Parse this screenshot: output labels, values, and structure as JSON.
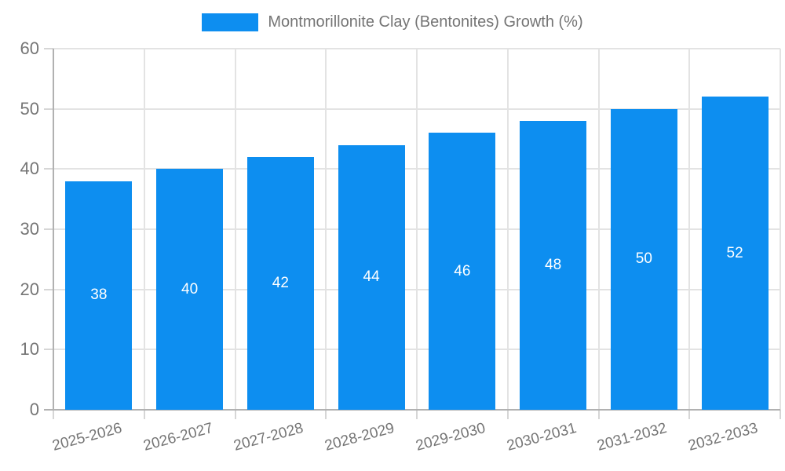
{
  "legend": {
    "label": "Montmorillonite Clay (Bentonites) Growth (%)"
  },
  "colors": {
    "bar": "#0d8ef0",
    "label_text": "#757575",
    "grid": "#e3e3e3",
    "tick": "#d6d6d6",
    "axis": "#b1b1b1",
    "bar_value_text": "#ffffff",
    "background": "#ffffff"
  },
  "chart_data": {
    "type": "bar",
    "title": "",
    "xlabel": "",
    "ylabel": "",
    "categories": [
      "2025-2026",
      "2026-2027",
      "2027-2028",
      "2028-2029",
      "2029-2030",
      "2030-2031",
      "2031-2032",
      "2032-2033"
    ],
    "values": [
      38,
      40,
      42,
      44,
      46,
      48,
      50,
      52
    ],
    "series_name": "Montmorillonite Clay (Bentonites) Growth (%)",
    "ylim": [
      0,
      60
    ],
    "yticks": [
      0,
      10,
      20,
      30,
      40,
      50,
      60
    ],
    "grid": true,
    "legend_position": "top",
    "bar_value_labels": true
  }
}
